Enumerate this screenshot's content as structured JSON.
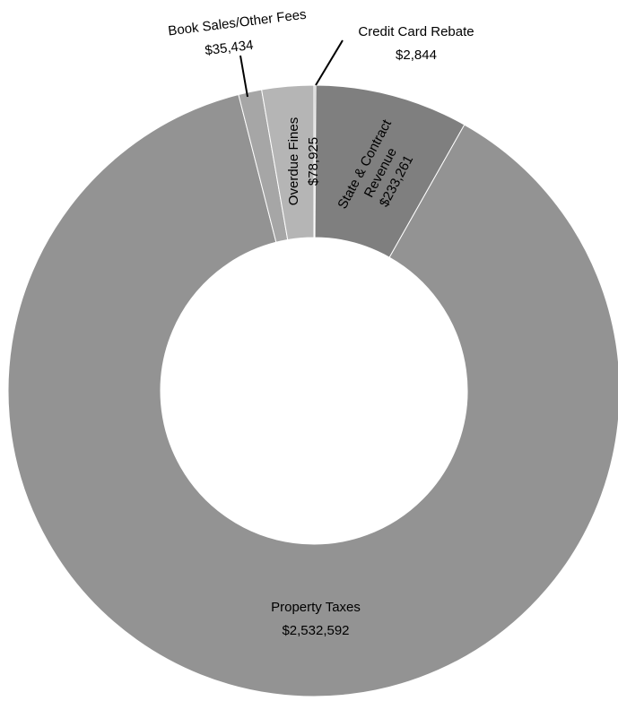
{
  "chart_data": {
    "type": "pie",
    "title": "",
    "slices": [
      {
        "label": "Credit Card Rebate",
        "value": 2844,
        "value_label": "$2,844",
        "color": "#c2c2c2"
      },
      {
        "label": "State & Contract Revenue",
        "value": 233261,
        "value_label": "$233,261",
        "color": "#7f7f7f"
      },
      {
        "label": "Property Taxes",
        "value": 2532592,
        "value_label": "$2,532,592",
        "color": "#939393"
      },
      {
        "label": "Book Sales/Other Fees",
        "value": 35434,
        "value_label": "$35,434",
        "color": "#a6a6a6"
      },
      {
        "label": "Overdue Fines",
        "value": 78925,
        "value_label": "$78,925",
        "color": "#b5b5b5"
      }
    ]
  },
  "labels": {
    "credit_card_name": "Credit Card Rebate",
    "credit_card_value": "$2,844",
    "state_line1": "State & Contract",
    "state_line2": "Revenue",
    "state_value": "$233,261",
    "property_name": "Property Taxes",
    "property_value": "$2,532,592",
    "book_name": "Book Sales/Other Fees",
    "book_value": "$35,434",
    "overdue_name": "Overdue Fines",
    "overdue_value": "$78,925"
  }
}
